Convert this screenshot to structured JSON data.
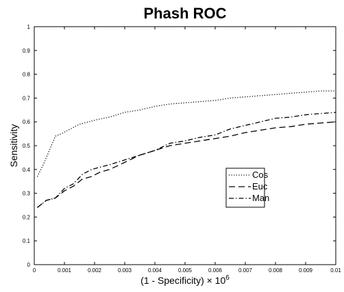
{
  "chart_data": {
    "type": "line",
    "title": "Phash ROC",
    "xlabel_base": "(1 - Specificity) × 10",
    "xlabel_exp": "6",
    "ylabel": "Sensitivity",
    "xlim": [
      0,
      0.01
    ],
    "ylim": [
      0,
      1
    ],
    "x_ticks": [
      "0",
      "0.001",
      "0.002",
      "0.003",
      "0.004",
      "0.005",
      "0.006",
      "0.007",
      "0.008",
      "0.009",
      "0.01"
    ],
    "y_ticks": [
      "0",
      "0.1",
      "0.2",
      "0.3",
      "0.4",
      "0.5",
      "0.6",
      "0.7",
      "0.8",
      "0.9",
      "1"
    ],
    "grid": false,
    "legend_position": "center-right",
    "series": [
      {
        "name": "Cos",
        "style": "dotted",
        "color": "#000000",
        "points": [
          [
            0.0001,
            0.37
          ],
          [
            0.0003,
            0.42
          ],
          [
            0.0005,
            0.48
          ],
          [
            0.0007,
            0.54
          ],
          [
            0.0009,
            0.55
          ],
          [
            0.0012,
            0.57
          ],
          [
            0.0015,
            0.59
          ],
          [
            0.0018,
            0.6
          ],
          [
            0.0021,
            0.61
          ],
          [
            0.0025,
            0.62
          ],
          [
            0.003,
            0.64
          ],
          [
            0.0035,
            0.65
          ],
          [
            0.004,
            0.665
          ],
          [
            0.0045,
            0.675
          ],
          [
            0.005,
            0.68
          ],
          [
            0.0055,
            0.685
          ],
          [
            0.006,
            0.69
          ],
          [
            0.0065,
            0.7
          ],
          [
            0.007,
            0.705
          ],
          [
            0.0075,
            0.71
          ],
          [
            0.008,
            0.715
          ],
          [
            0.0085,
            0.72
          ],
          [
            0.009,
            0.725
          ],
          [
            0.0095,
            0.73
          ],
          [
            0.01,
            0.73
          ]
        ]
      },
      {
        "name": "Euc",
        "style": "dashed",
        "color": "#000000",
        "points": [
          [
            0.0001,
            0.24
          ],
          [
            0.0004,
            0.27
          ],
          [
            0.0007,
            0.28
          ],
          [
            0.001,
            0.31
          ],
          [
            0.0013,
            0.33
          ],
          [
            0.0016,
            0.36
          ],
          [
            0.0019,
            0.37
          ],
          [
            0.0022,
            0.39
          ],
          [
            0.0025,
            0.4
          ],
          [
            0.003,
            0.43
          ],
          [
            0.0035,
            0.46
          ],
          [
            0.004,
            0.48
          ],
          [
            0.0045,
            0.5
          ],
          [
            0.005,
            0.51
          ],
          [
            0.0055,
            0.52
          ],
          [
            0.006,
            0.53
          ],
          [
            0.0065,
            0.54
          ],
          [
            0.007,
            0.555
          ],
          [
            0.0075,
            0.565
          ],
          [
            0.008,
            0.575
          ],
          [
            0.0085,
            0.58
          ],
          [
            0.009,
            0.59
          ],
          [
            0.0095,
            0.595
          ],
          [
            0.01,
            0.6
          ]
        ]
      },
      {
        "name": "Man",
        "style": "dashdot",
        "color": "#000000",
        "points": [
          [
            0.0001,
            0.24
          ],
          [
            0.0004,
            0.27
          ],
          [
            0.0007,
            0.28
          ],
          [
            0.001,
            0.32
          ],
          [
            0.0013,
            0.34
          ],
          [
            0.0016,
            0.38
          ],
          [
            0.0019,
            0.4
          ],
          [
            0.0022,
            0.41
          ],
          [
            0.0025,
            0.42
          ],
          [
            0.003,
            0.44
          ],
          [
            0.0035,
            0.46
          ],
          [
            0.004,
            0.48
          ],
          [
            0.0045,
            0.51
          ],
          [
            0.005,
            0.52
          ],
          [
            0.0055,
            0.535
          ],
          [
            0.006,
            0.545
          ],
          [
            0.0065,
            0.57
          ],
          [
            0.007,
            0.585
          ],
          [
            0.0075,
            0.6
          ],
          [
            0.008,
            0.615
          ],
          [
            0.0085,
            0.62
          ],
          [
            0.009,
            0.63
          ],
          [
            0.0095,
            0.635
          ],
          [
            0.01,
            0.64
          ]
        ]
      }
    ]
  }
}
